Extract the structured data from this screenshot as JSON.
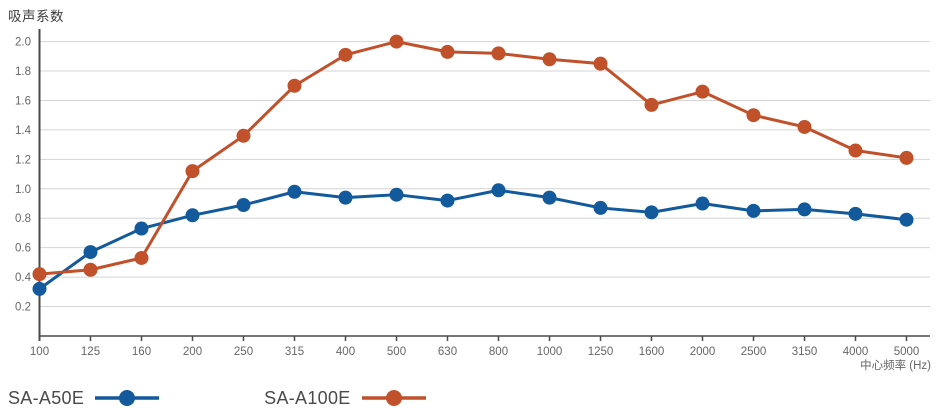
{
  "chart": {
    "title": "吸声系数",
    "xlabel": "中心频率 (Hz)",
    "colors": {
      "series_blue": "#125a9b",
      "series_orange": "#c0512b",
      "grid": "#d4d4d4",
      "axis": "#4a4a4a",
      "tick_text": "#666666",
      "title_text": "#3d3d3d",
      "legend_text": "#4a4a4a",
      "background": "#ffffff"
    }
  },
  "chart_data": {
    "type": "line",
    "title": "吸声系数",
    "xlabel": "中心频率 (Hz)",
    "ylabel": "吸声系数",
    "categories": [
      "100",
      "125",
      "160",
      "200",
      "250",
      "315",
      "400",
      "500",
      "630",
      "800",
      "1000",
      "1250",
      "1600",
      "2000",
      "2500",
      "3150",
      "4000",
      "5000"
    ],
    "y_ticks": [
      0.2,
      0.4,
      0.6,
      0.8,
      1.0,
      1.2,
      1.4,
      1.6,
      1.8,
      2.0
    ],
    "ylim": [
      0,
      2.08
    ],
    "grid": true,
    "legend_position": "bottom-left",
    "series": [
      {
        "name": "SA-A50E",
        "color": "#125a9b",
        "values": [
          0.32,
          0.57,
          0.73,
          0.82,
          0.89,
          0.98,
          0.94,
          0.96,
          0.92,
          0.99,
          0.94,
          0.87,
          0.84,
          0.9,
          0.85,
          0.86,
          0.83,
          0.79
        ]
      },
      {
        "name": "SA-A100E",
        "color": "#c0512b",
        "values": [
          0.42,
          0.45,
          0.53,
          1.12,
          1.36,
          1.7,
          1.91,
          2.0,
          1.93,
          1.92,
          1.88,
          1.85,
          1.57,
          1.66,
          1.5,
          1.42,
          1.26,
          1.21
        ]
      }
    ]
  }
}
